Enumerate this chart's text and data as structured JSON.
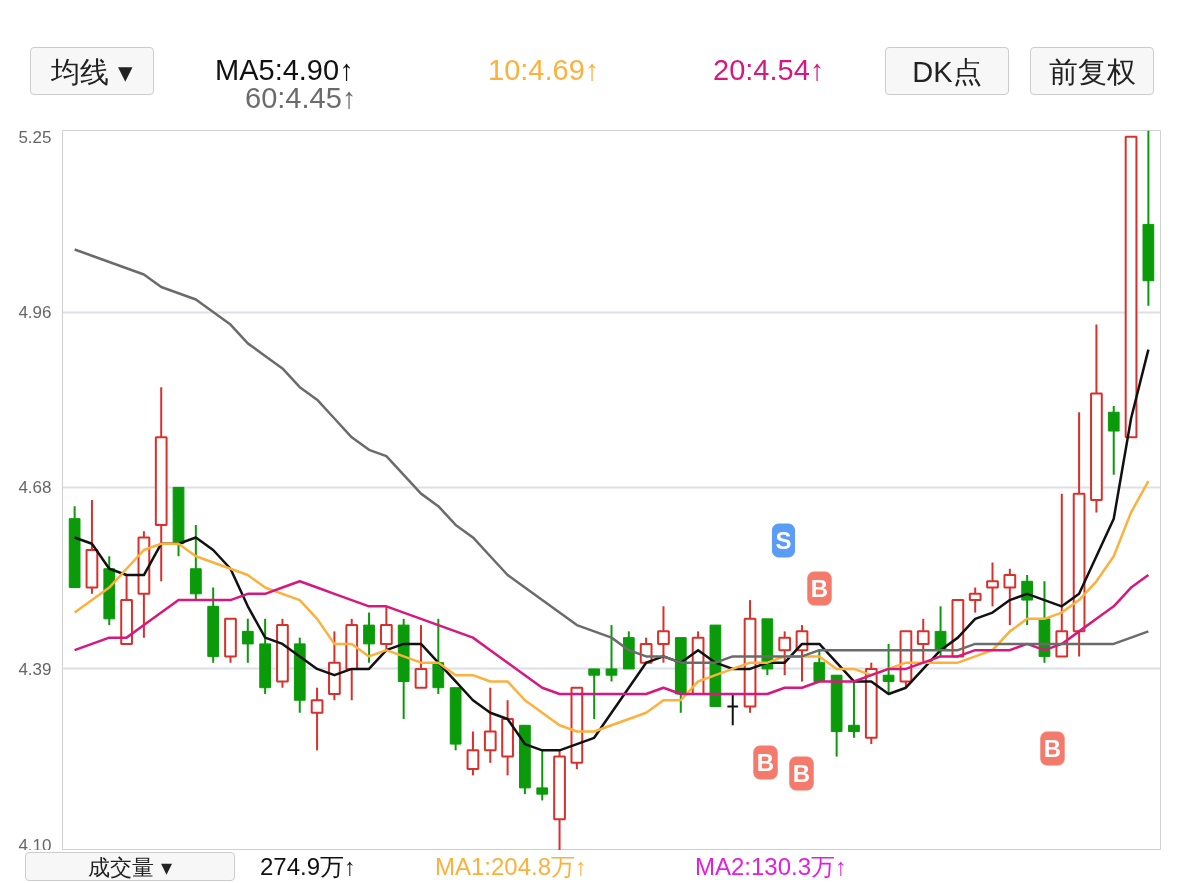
{
  "chart_data": {
    "type": "candlestick",
    "categories": [
      null,
      null,
      null,
      null,
      null,
      null,
      null,
      null,
      null,
      null,
      null,
      null,
      null,
      null,
      null,
      null,
      null,
      null,
      null,
      null,
      null,
      null,
      null,
      null,
      null,
      null,
      null,
      null,
      null,
      null,
      null,
      null,
      null,
      null,
      null,
      null,
      null,
      null,
      null,
      null,
      null,
      null,
      null,
      null,
      null,
      null,
      null,
      null,
      null,
      null,
      null,
      null,
      null,
      null,
      null,
      null,
      null,
      null,
      null,
      null,
      null,
      null,
      null
    ],
    "ohlc": [
      [
        4.63,
        4.65,
        4.52,
        4.52
      ],
      [
        4.52,
        4.66,
        4.51,
        4.58
      ],
      [
        4.55,
        4.57,
        4.46,
        4.47
      ],
      [
        4.43,
        4.54,
        4.43,
        4.5
      ],
      [
        4.51,
        4.61,
        4.44,
        4.6
      ],
      [
        4.62,
        4.84,
        4.53,
        4.76
      ],
      [
        4.68,
        4.68,
        4.57,
        4.59
      ],
      [
        4.55,
        4.62,
        4.5,
        4.51
      ],
      [
        4.49,
        4.52,
        4.4,
        4.41
      ],
      [
        4.41,
        4.47,
        4.4,
        4.47
      ],
      [
        4.45,
        4.47,
        4.4,
        4.43
      ],
      [
        4.43,
        4.47,
        4.35,
        4.36
      ],
      [
        4.37,
        4.47,
        4.36,
        4.46
      ],
      [
        4.43,
        4.44,
        4.32,
        4.34
      ],
      [
        4.32,
        4.36,
        4.26,
        4.34
      ],
      [
        4.35,
        4.45,
        4.34,
        4.4
      ],
      [
        4.39,
        4.47,
        4.34,
        4.46
      ],
      [
        4.46,
        4.48,
        4.4,
        4.43
      ],
      [
        4.43,
        4.49,
        4.42,
        4.46
      ],
      [
        4.46,
        4.47,
        4.31,
        4.37
      ],
      [
        4.36,
        4.46,
        4.36,
        4.39
      ],
      [
        4.4,
        4.47,
        4.35,
        4.36
      ],
      [
        4.36,
        4.36,
        4.26,
        4.27
      ],
      [
        4.23,
        4.29,
        4.22,
        4.26
      ],
      [
        4.26,
        4.36,
        4.24,
        4.29
      ],
      [
        4.25,
        4.34,
        4.22,
        4.31
      ],
      [
        4.3,
        4.3,
        4.19,
        4.2
      ],
      [
        4.2,
        4.26,
        4.18,
        4.19
      ],
      [
        4.15,
        4.26,
        4.1,
        4.25
      ],
      [
        4.24,
        4.36,
        4.23,
        4.36
      ],
      [
        4.39,
        4.39,
        4.31,
        4.38
      ],
      [
        4.39,
        4.46,
        4.37,
        4.38
      ],
      [
        4.44,
        4.45,
        4.39,
        4.39
      ],
      [
        4.4,
        4.44,
        4.4,
        4.43
      ],
      [
        4.43,
        4.49,
        4.4,
        4.45
      ],
      [
        4.44,
        4.44,
        4.32,
        4.35
      ],
      [
        4.35,
        4.45,
        4.35,
        4.44
      ],
      [
        4.46,
        4.46,
        4.33,
        4.33
      ],
      [
        4.33,
        4.35,
        4.3,
        4.33
      ],
      [
        4.33,
        4.5,
        4.32,
        4.47
      ],
      [
        4.47,
        4.47,
        4.38,
        4.39
      ],
      [
        4.42,
        4.45,
        4.38,
        4.44
      ],
      [
        4.42,
        4.46,
        4.37,
        4.45
      ],
      [
        4.4,
        4.42,
        4.37,
        4.37
      ],
      [
        4.38,
        4.38,
        4.25,
        4.29
      ],
      [
        4.3,
        4.37,
        4.28,
        4.29
      ],
      [
        4.28,
        4.4,
        4.27,
        4.39
      ],
      [
        4.38,
        4.43,
        4.35,
        4.37
      ],
      [
        4.37,
        4.45,
        4.36,
        4.45
      ],
      [
        4.43,
        4.47,
        4.4,
        4.45
      ],
      [
        4.45,
        4.49,
        4.41,
        4.42
      ],
      [
        4.41,
        4.5,
        4.41,
        4.5
      ],
      [
        4.5,
        4.52,
        4.48,
        4.51
      ],
      [
        4.52,
        4.56,
        4.49,
        4.53
      ],
      [
        4.52,
        4.55,
        4.46,
        4.54
      ],
      [
        4.53,
        4.54,
        4.46,
        4.5
      ],
      [
        4.47,
        4.53,
        4.4,
        4.41
      ],
      [
        4.41,
        4.67,
        4.41,
        4.45
      ],
      [
        4.45,
        4.8,
        4.41,
        4.67
      ],
      [
        4.66,
        4.94,
        4.64,
        4.83
      ],
      [
        4.8,
        4.81,
        4.7,
        4.77
      ],
      [
        4.76,
        5.24,
        4.76,
        5.24
      ],
      [
        5.1,
        5.25,
        4.97,
        5.01
      ]
    ],
    "colors": [
      "#0a9a0a",
      "#d9302c",
      "#0a9a0a",
      "#d9302c",
      "#d9302c",
      "#d9302c",
      "#0a9a0a",
      "#0a9a0a",
      "#0a9a0a",
      "#d9302c",
      "#0a9a0a",
      "#0a9a0a",
      "#d9302c",
      "#0a9a0a",
      "#d9302c",
      "#d9302c",
      "#d9302c",
      "#0a9a0a",
      "#d9302c",
      "#0a9a0a",
      "#d9302c",
      "#0a9a0a",
      "#0a9a0a",
      "#d9302c",
      "#d9302c",
      "#d9302c",
      "#0a9a0a",
      "#0a9a0a",
      "#d9302c",
      "#d9302c",
      "#0a9a0a",
      "#0a9a0a",
      "#0a9a0a",
      "#d9302c",
      "#d9302c",
      "#0a9a0a",
      "#d9302c",
      "#0a9a0a",
      "#111111",
      "#d9302c",
      "#0a9a0a",
      "#d9302c",
      "#d9302c",
      "#0a9a0a",
      "#0a9a0a",
      "#0a9a0a",
      "#d9302c",
      "#0a9a0a",
      "#d9302c",
      "#d9302c",
      "#0a9a0a",
      "#d9302c",
      "#d9302c",
      "#d9302c",
      "#d9302c",
      "#0a9a0a",
      "#0a9a0a",
      "#d9302c",
      "#d9302c",
      "#d9302c",
      "#0a9a0a",
      "#d9302c",
      "#0a9a0a"
    ],
    "series": [
      {
        "type": "line",
        "name": "MA5:4.90↑",
        "color": "#111111",
        "values": [
          4.6,
          4.59,
          4.55,
          4.54,
          4.54,
          4.59,
          4.59,
          4.6,
          4.58,
          4.55,
          4.49,
          4.44,
          4.43,
          4.41,
          4.39,
          4.38,
          4.39,
          4.39,
          4.42,
          4.43,
          4.43,
          4.4,
          4.37,
          4.34,
          4.32,
          4.31,
          4.27,
          4.26,
          4.26,
          4.27,
          4.28,
          4.32,
          4.36,
          4.4,
          4.41,
          4.4,
          4.42,
          4.4,
          4.39,
          4.39,
          4.4,
          4.4,
          4.43,
          4.43,
          4.4,
          4.37,
          4.37,
          4.35,
          4.36,
          4.39,
          4.42,
          4.44,
          4.47,
          4.48,
          4.5,
          4.51,
          4.5,
          4.49,
          4.51,
          4.57,
          4.63,
          4.79,
          4.9
        ]
      },
      {
        "type": "line",
        "name": "10:4.69↑",
        "color": "#fbb13c",
        "values": [
          4.48,
          4.5,
          4.52,
          4.55,
          4.58,
          4.59,
          4.59,
          4.57,
          4.56,
          4.55,
          4.54,
          4.52,
          4.51,
          4.5,
          4.47,
          4.43,
          4.43,
          4.41,
          4.42,
          4.41,
          4.4,
          4.4,
          4.38,
          4.38,
          4.37,
          4.37,
          4.34,
          4.32,
          4.3,
          4.29,
          4.29,
          4.3,
          4.31,
          4.32,
          4.34,
          4.34,
          4.37,
          4.38,
          4.39,
          4.4,
          4.4,
          4.41,
          4.41,
          4.41,
          4.39,
          4.39,
          4.38,
          4.39,
          4.4,
          4.4,
          4.4,
          4.4,
          4.41,
          4.42,
          4.45,
          4.47,
          4.47,
          4.48,
          4.5,
          4.53,
          4.57,
          4.64,
          4.69
        ]
      },
      {
        "type": "line",
        "name": "20:4.54↑",
        "color": "#d6187f",
        "values": [
          4.42,
          4.43,
          4.44,
          4.44,
          4.46,
          4.48,
          4.5,
          4.5,
          4.5,
          4.5,
          4.51,
          4.51,
          4.52,
          4.53,
          4.52,
          4.51,
          4.5,
          4.49,
          4.49,
          4.48,
          4.47,
          4.46,
          4.45,
          4.44,
          4.42,
          4.4,
          4.38,
          4.36,
          4.35,
          4.35,
          4.35,
          4.35,
          4.35,
          4.35,
          4.36,
          4.35,
          4.35,
          4.35,
          4.35,
          4.35,
          4.35,
          4.36,
          4.36,
          4.37,
          4.37,
          4.37,
          4.38,
          4.39,
          4.39,
          4.4,
          4.41,
          4.41,
          4.42,
          4.42,
          4.42,
          4.43,
          4.42,
          4.43,
          4.45,
          4.47,
          4.49,
          4.52,
          4.54
        ]
      },
      {
        "type": "line",
        "name": "60:4.45↑",
        "color": "#6b6b6b",
        "values": [
          5.06,
          5.05,
          5.04,
          5.03,
          5.02,
          5.0,
          4.99,
          4.98,
          4.96,
          4.94,
          4.91,
          4.89,
          4.87,
          4.84,
          4.82,
          4.79,
          4.76,
          4.74,
          4.73,
          4.7,
          4.67,
          4.65,
          4.62,
          4.6,
          4.57,
          4.54,
          4.52,
          4.5,
          4.48,
          4.46,
          4.45,
          4.44,
          4.42,
          4.41,
          4.41,
          4.4,
          4.4,
          4.4,
          4.41,
          4.41,
          4.41,
          4.41,
          4.41,
          4.42,
          4.42,
          4.42,
          4.42,
          4.42,
          4.42,
          4.42,
          4.42,
          4.42,
          4.43,
          4.43,
          4.43,
          4.43,
          4.43,
          4.43,
          4.43,
          4.43,
          4.43,
          4.44,
          4.45
        ]
      }
    ],
    "ylim": [
      4.1,
      5.25
    ],
    "yticks": [
      {
        "value": 4.1,
        "label": "4.10"
      },
      4.39,
      4.68,
      4.96,
      5.25
    ],
    "grid": "y",
    "tick_labels": "y",
    "annotations": [
      "S",
      "B",
      "B",
      "B",
      "B",
      "均线 ▾",
      "DK点",
      "前复权",
      "成交量 ▾",
      "274.9万↑",
      "MA1:204.8万↑",
      "MA2:130.3万↑"
    ]
  }
}
